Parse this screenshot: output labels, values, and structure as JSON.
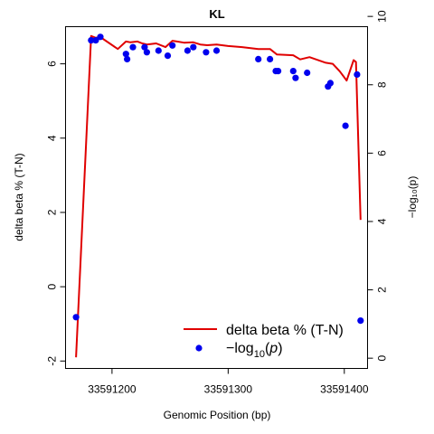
{
  "chart_data": {
    "type": "line",
    "title": "KL",
    "xlabel": "Genomic Position (bp)",
    "ylabel": "delta beta % (T-N)",
    "ylabel_right": "−log₁₀(p)",
    "xlim": [
      33591160,
      33591420
    ],
    "ylim": [
      -2.2,
      7.0
    ],
    "ylim_right": [
      -0.3,
      9.7
    ],
    "x_ticks": [
      33591200,
      33591300,
      33591400
    ],
    "x_tick_labels": [
      "33591200",
      "33591300",
      "33591400"
    ],
    "y_ticks": [
      -2,
      0,
      2,
      4,
      6
    ],
    "y_tick_labels": [
      "-2",
      "0",
      "2",
      "4",
      "6"
    ],
    "y_ticks_right": [
      0,
      2,
      4,
      6,
      8,
      10
    ],
    "y_tick_labels_right": [
      "0",
      "2",
      "4",
      "6",
      "8",
      "10"
    ],
    "grid": false,
    "legend": {
      "position": "bottom-right",
      "entries": [
        {
          "label": "delta beta % (T-N)",
          "symbol": "line"
        },
        {
          "label_prefix": "−log",
          "label_sub": "10",
          "label_var": "p",
          "symbol": "point"
        }
      ]
    },
    "series": [
      {
        "name": "delta beta % (T-N)",
        "axis": "left",
        "color": "#e00000",
        "type": "line",
        "x": [
          33591169,
          33591182,
          33591186,
          33591190,
          33591205,
          33591212,
          33591216,
          33591222,
          33591226,
          33591230,
          33591238,
          33591246,
          33591252,
          33591256,
          33591262,
          33591270,
          33591276,
          33591282,
          33591290,
          33591300,
          33591312,
          33591326,
          33591336,
          33591342,
          33591356,
          33591362,
          33591370,
          33591384,
          33591390,
          33591396,
          33591402,
          33591408,
          33591410,
          33591414
        ],
        "values": [
          -1.9,
          6.75,
          6.7,
          6.72,
          6.4,
          6.6,
          6.58,
          6.6,
          6.55,
          6.52,
          6.55,
          6.45,
          6.62,
          6.6,
          6.57,
          6.58,
          6.52,
          6.5,
          6.52,
          6.48,
          6.45,
          6.4,
          6.4,
          6.25,
          6.23,
          6.12,
          6.18,
          6.03,
          6.0,
          5.8,
          5.55,
          6.1,
          6.05,
          1.8
        ]
      },
      {
        "name": "−log10(p)",
        "axis": "right",
        "color": "#0000ee",
        "type": "scatter",
        "x": [
          33591169,
          33591182,
          33591186,
          33591190,
          33591212,
          33591213,
          33591218,
          33591228,
          33591230,
          33591240,
          33591248,
          33591252,
          33591265,
          33591270,
          33591281,
          33591290,
          33591326,
          33591336,
          33591341,
          33591343,
          33591356,
          33591358,
          33591368,
          33591386,
          33591388,
          33591401,
          33591411,
          33591414
        ],
        "values": [
          1.2,
          9.3,
          9.3,
          9.4,
          8.9,
          8.75,
          9.1,
          9.1,
          8.95,
          9.0,
          8.85,
          9.15,
          9.0,
          9.1,
          8.95,
          9.0,
          8.75,
          8.75,
          8.4,
          8.4,
          8.4,
          8.2,
          8.35,
          7.95,
          8.05,
          6.8,
          8.3,
          1.1
        ]
      }
    ]
  }
}
